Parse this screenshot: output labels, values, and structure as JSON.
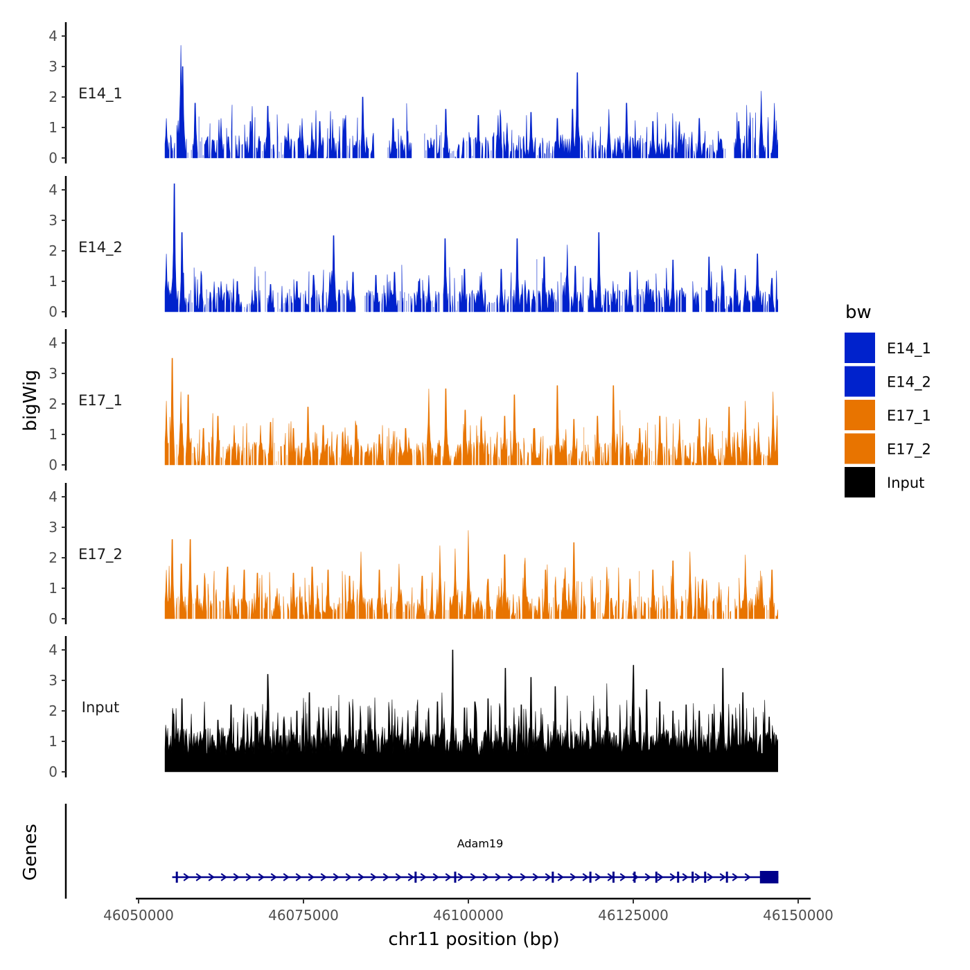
{
  "chart_data": {
    "type": "area",
    "title": "",
    "xlabel": "chr11 position (bp)",
    "ylabel": "bigWig",
    "genes_label": "Genes",
    "xlim": [
      46050000,
      46150000
    ],
    "x_ticks": [
      {
        "value": 46050000,
        "label": "46050000"
      },
      {
        "value": 46075000,
        "label": "46075000"
      },
      {
        "value": 46100000,
        "label": "46100000"
      },
      {
        "value": 46125000,
        "label": "46125000"
      },
      {
        "value": 46150000,
        "label": "46150000"
      }
    ],
    "ylim": [
      0,
      4.4
    ],
    "y_ticks": [
      0,
      1,
      2,
      3,
      4
    ],
    "region": [
      46054000,
      46147000
    ],
    "legend": {
      "title": "bw",
      "entries": [
        {
          "name": "E14_1",
          "color": "#0022CC"
        },
        {
          "name": "E14_2",
          "color": "#0022CC"
        },
        {
          "name": "E17_1",
          "color": "#E87400"
        },
        {
          "name": "E17_2",
          "color": "#E87400"
        },
        {
          "name": "Input",
          "color": "#000000"
        }
      ]
    },
    "series": [
      {
        "name": "E14_1",
        "color": "#0022CC",
        "peaks": [
          [
            46054200,
            1.3
          ],
          [
            46056400,
            3.7
          ],
          [
            46056700,
            3.0
          ],
          [
            46058600,
            1.8
          ],
          [
            46062500,
            1.3
          ],
          [
            46067000,
            1.2
          ],
          [
            46069600,
            1.7
          ],
          [
            46072700,
            1.1
          ],
          [
            46074800,
            1.3
          ],
          [
            46077500,
            1.2
          ],
          [
            46081200,
            1.3
          ],
          [
            46084000,
            2.0
          ],
          [
            46088600,
            1.3
          ],
          [
            46090000,
            0.6
          ],
          [
            46093000,
            1.5
          ],
          [
            46096600,
            1.6
          ],
          [
            46101500,
            1.4
          ],
          [
            46104500,
            1.4
          ],
          [
            46109500,
            1.5
          ],
          [
            46113500,
            1.3
          ],
          [
            46115800,
            1.6
          ],
          [
            46116500,
            2.8
          ],
          [
            46121300,
            1.6
          ],
          [
            46124000,
            1.8
          ],
          [
            46128000,
            1.2
          ],
          [
            46132000,
            1.2
          ],
          [
            46135000,
            1.3
          ],
          [
            46141000,
            1.2
          ],
          [
            46144400,
            2.2
          ],
          [
            46146400,
            1.8
          ],
          [
            46147000,
            0.6
          ]
        ],
        "gaps": [
          [
            46085800,
            46087700
          ],
          [
            46091400,
            46093300
          ],
          [
            46139000,
            46140200
          ]
        ]
      },
      {
        "name": "E14_2",
        "color": "#0022CC",
        "peaks": [
          [
            46054200,
            1.9
          ],
          [
            46055400,
            4.2
          ],
          [
            46056600,
            2.6
          ],
          [
            46059500,
            1.2
          ],
          [
            46062500,
            1.0
          ],
          [
            46065000,
            1.0
          ],
          [
            46070000,
            0.9
          ],
          [
            46074000,
            1.0
          ],
          [
            46076500,
            1.2
          ],
          [
            46079000,
            1.3
          ],
          [
            46079600,
            2.5
          ],
          [
            46082500,
            1.3
          ],
          [
            46086000,
            1.2
          ],
          [
            46088800,
            1.3
          ],
          [
            46092500,
            1.0
          ],
          [
            46094000,
            1.2
          ],
          [
            46096500,
            2.4
          ],
          [
            46099400,
            1.4
          ],
          [
            46102000,
            1.3
          ],
          [
            46105000,
            1.4
          ],
          [
            46107400,
            2.4
          ],
          [
            46111500,
            1.8
          ],
          [
            46115000,
            2.2
          ],
          [
            46116200,
            1.5
          ],
          [
            46118500,
            1.1
          ],
          [
            46119800,
            2.6
          ],
          [
            46124500,
            1.3
          ],
          [
            46127000,
            1.0
          ],
          [
            46131000,
            1.7
          ],
          [
            46134000,
            1.0
          ],
          [
            46136500,
            1.8
          ],
          [
            46138500,
            1.3
          ],
          [
            46140500,
            1.4
          ],
          [
            46142000,
            1.2
          ],
          [
            46143800,
            1.9
          ],
          [
            46146000,
            1.1
          ],
          [
            46147000,
            0.4
          ]
        ],
        "gaps": [
          [
            46083000,
            46083800
          ],
          [
            46133000,
            46134000
          ]
        ]
      },
      {
        "name": "E17_1",
        "color": "#E87400",
        "peaks": [
          [
            46054200,
            2.1
          ],
          [
            46055100,
            3.5
          ],
          [
            46056400,
            2.4
          ],
          [
            46057500,
            2.3
          ],
          [
            46059800,
            1.2
          ],
          [
            46062000,
            1.6
          ],
          [
            46064500,
            1.3
          ],
          [
            46068500,
            1.3
          ],
          [
            46070000,
            1.4
          ],
          [
            46073500,
            1.2
          ],
          [
            46075700,
            1.9
          ],
          [
            46078000,
            1.3
          ],
          [
            46081000,
            1.1
          ],
          [
            46083000,
            1.3
          ],
          [
            46086500,
            1.0
          ],
          [
            46090500,
            1.2
          ],
          [
            46094000,
            2.5
          ],
          [
            46096600,
            2.5
          ],
          [
            46099500,
            1.8
          ],
          [
            46102000,
            1.6
          ],
          [
            46105500,
            1.6
          ],
          [
            46107000,
            2.3
          ],
          [
            46110000,
            1.2
          ],
          [
            46113500,
            2.6
          ],
          [
            46116000,
            1.5
          ],
          [
            46119600,
            1.6
          ],
          [
            46122000,
            2.6
          ],
          [
            46126000,
            1.2
          ],
          [
            46129000,
            1.6
          ],
          [
            46132000,
            1.5
          ],
          [
            46135000,
            1.5
          ],
          [
            46137000,
            1.0
          ],
          [
            46139500,
            1.9
          ],
          [
            46142000,
            2.1
          ],
          [
            46144000,
            1.4
          ],
          [
            46146200,
            2.4
          ],
          [
            46147000,
            0.2
          ]
        ],
        "gaps": []
      },
      {
        "name": "E17_2",
        "color": "#E87400",
        "peaks": [
          [
            46054200,
            1.6
          ],
          [
            46055100,
            2.6
          ],
          [
            46056500,
            1.8
          ],
          [
            46057800,
            2.6
          ],
          [
            46060000,
            1.5
          ],
          [
            46063500,
            1.7
          ],
          [
            46066000,
            1.6
          ],
          [
            46068000,
            1.5
          ],
          [
            46071000,
            1.0
          ],
          [
            46073500,
            1.5
          ],
          [
            46076300,
            1.7
          ],
          [
            46078700,
            1.6
          ],
          [
            46082000,
            1.4
          ],
          [
            46083700,
            2.2
          ],
          [
            46086500,
            1.6
          ],
          [
            46089500,
            1.8
          ],
          [
            46093000,
            1.4
          ],
          [
            46095700,
            2.4
          ],
          [
            46098000,
            2.3
          ],
          [
            46100000,
            2.9
          ],
          [
            46103000,
            1.3
          ],
          [
            46105500,
            2.1
          ],
          [
            46108600,
            2.0
          ],
          [
            46111700,
            1.6
          ],
          [
            46114500,
            1.3
          ],
          [
            46116000,
            2.5
          ],
          [
            46121000,
            1.7
          ],
          [
            46124500,
            1.3
          ],
          [
            46128000,
            1.6
          ],
          [
            46131000,
            1.9
          ],
          [
            46133600,
            2.2
          ],
          [
            46135500,
            1.3
          ],
          [
            46138000,
            1.2
          ],
          [
            46140200,
            2.0
          ],
          [
            46142000,
            2.1
          ],
          [
            46144500,
            1.4
          ],
          [
            46146000,
            1.6
          ],
          [
            46147000,
            0.3
          ]
        ],
        "gaps": [
          [
            46117800,
            46118500
          ],
          [
            46139800,
            46140400
          ]
        ]
      },
      {
        "name": "Input",
        "color": "#000000",
        "peaks": [
          [
            46054200,
            1.3
          ],
          [
            46055300,
            1.9
          ],
          [
            46056600,
            2.4
          ],
          [
            46058000,
            1.9
          ],
          [
            46060000,
            2.3
          ],
          [
            46062000,
            1.7
          ],
          [
            46064000,
            2.2
          ],
          [
            46066500,
            1.9
          ],
          [
            46068000,
            1.8
          ],
          [
            46069600,
            3.2
          ],
          [
            46072000,
            1.7
          ],
          [
            46074000,
            2.0
          ],
          [
            46075900,
            2.6
          ],
          [
            46078000,
            2.1
          ],
          [
            46080000,
            2.0
          ],
          [
            46082000,
            2.1
          ],
          [
            46083600,
            2.0
          ],
          [
            46085200,
            2.1
          ],
          [
            46088000,
            2.0
          ],
          [
            46090000,
            1.8
          ],
          [
            46092000,
            2.0
          ],
          [
            46094000,
            2.1
          ],
          [
            46095300,
            2.3
          ],
          [
            46096000,
            2.6
          ],
          [
            46097600,
            4.0
          ],
          [
            46099400,
            2.1
          ],
          [
            46101000,
            2.3
          ],
          [
            46103000,
            2.4
          ],
          [
            46104800,
            2.1
          ],
          [
            46105600,
            3.4
          ],
          [
            46108000,
            2.2
          ],
          [
            46109500,
            3.1
          ],
          [
            46111000,
            2.1
          ],
          [
            46113200,
            2.8
          ],
          [
            46115000,
            2.5
          ],
          [
            46117000,
            2.0
          ],
          [
            46119000,
            2.5
          ],
          [
            46121000,
            2.9
          ],
          [
            46123000,
            2.2
          ],
          [
            46125000,
            3.5
          ],
          [
            46127000,
            2.7
          ],
          [
            46129000,
            2.3
          ],
          [
            46131000,
            2.0
          ],
          [
            46133000,
            2.2
          ],
          [
            46135000,
            2.0
          ],
          [
            46137000,
            1.9
          ],
          [
            46138600,
            3.4
          ],
          [
            46140000,
            1.9
          ],
          [
            46141600,
            2.6
          ],
          [
            46143600,
            1.8
          ],
          [
            46145600,
            1.8
          ],
          [
            46147000,
            1.0
          ]
        ],
        "gaps": []
      }
    ],
    "gene": {
      "name": "Adam19",
      "start": 46055800,
      "end": 46147000,
      "strand": "+",
      "color": "#00008B",
      "utr_block": [
        46144200,
        46147000
      ],
      "exon_marks": [
        46055800,
        46092000,
        46098000,
        46112800,
        46118500,
        46122000,
        46125200,
        46128500,
        46131800,
        46134000,
        46135900,
        46139200
      ]
    }
  }
}
